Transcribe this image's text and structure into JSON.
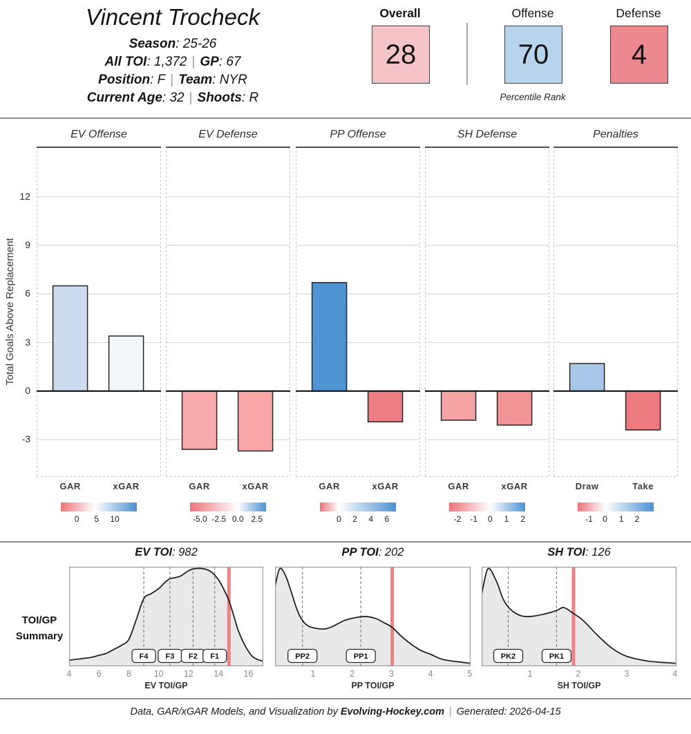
{
  "header": {
    "player_name": "Vincent Trocheck",
    "season_label": "Season",
    "season_value": ": 25-26",
    "alltoi_label": "All TOI",
    "alltoi_value": ": 1,372",
    "gp_label": "GP",
    "gp_value": ": 67",
    "position_label": "Position",
    "position_value": ": F",
    "team_label": "Team",
    "team_value": ": NYR",
    "age_label": "Current Age",
    "age_value": ": 32",
    "shoots_label": "Shoots",
    "shoots_value": ": R",
    "pipe": "|"
  },
  "percentile": {
    "caption": "Percentile Rank",
    "boxes": [
      {
        "label": "Overall",
        "value": "28",
        "color": "#f5c4c8"
      },
      {
        "label": "Offense",
        "value": "70",
        "color": "#b8d4ec"
      },
      {
        "label": "Defense",
        "value": "4",
        "color": "#ec898e"
      }
    ]
  },
  "chart_data": {
    "gar": {
      "type": "bar",
      "ylabel": "Total Goals Above Replacement",
      "ylim": [
        -5.3,
        15.1
      ],
      "y_ticks": [
        12,
        9,
        6,
        3,
        0,
        -3
      ],
      "panels": [
        {
          "title": "EV Offense",
          "categories": [
            "GAR",
            "xGAR"
          ],
          "values": [
            6.5,
            3.4
          ],
          "bar_colors": [
            "#cddcee",
            "#f3f7fb"
          ],
          "legend": {
            "ticks": [
              "0",
              "5",
              "10"
            ],
            "tick_pos": [
              0.21,
              0.47,
              0.71
            ],
            "white_pos": 0.45
          }
        },
        {
          "title": "EV Defense",
          "categories": [
            "GAR",
            "xGAR"
          ],
          "values": [
            -3.6,
            -3.7
          ],
          "bar_colors": [
            "#f9aaad",
            "#f9a6a9"
          ],
          "legend": {
            "ticks": [
              "-5.0",
              "-2.5",
              "0.0",
              "2.5"
            ],
            "tick_pos": [
              0.13,
              0.38,
              0.63,
              0.88
            ],
            "white_pos": 0.63
          }
        },
        {
          "title": "PP Offense",
          "categories": [
            "GAR",
            "xGAR"
          ],
          "values": [
            6.7,
            -1.9
          ],
          "bar_colors": [
            "#4f94d3",
            "#ee7e83"
          ],
          "legend": {
            "ticks": [
              "0",
              "2",
              "4",
              "6"
            ],
            "tick_pos": [
              0.25,
              0.46,
              0.67,
              0.88
            ],
            "white_pos": 0.25
          }
        },
        {
          "title": "SH Defense",
          "categories": [
            "GAR",
            "xGAR"
          ],
          "values": [
            -1.8,
            -2.1
          ],
          "bar_colors": [
            "#f6a3a6",
            "#f29496"
          ],
          "legend": {
            "ticks": [
              "-2",
              "-1",
              "0",
              "1",
              "2"
            ],
            "tick_pos": [
              0.11,
              0.325,
              0.54,
              0.755,
              0.97
            ],
            "white_pos": 0.54
          }
        },
        {
          "title": "Penalties",
          "categories": [
            "Draw",
            "Take"
          ],
          "values": [
            1.7,
            -2.4
          ],
          "bar_colors": [
            "#a8c7e9",
            "#ed7a7f"
          ],
          "legend": {
            "ticks": [
              "-1",
              "0",
              "1",
              "2"
            ],
            "tick_pos": [
              0.15,
              0.36,
              0.575,
              0.78
            ],
            "white_pos": 0.36
          }
        }
      ]
    },
    "toi": {
      "type": "area",
      "section_label_line1": "TOI/GP",
      "section_label_line2": "Summary",
      "panels": [
        {
          "title_label": "EV TOI",
          "title_value": ": 982",
          "xlabel": "EV TOI/GP",
          "xlim": [
            4,
            17
          ],
          "x_ticks": [
            4,
            6,
            8,
            10,
            12,
            14,
            16
          ],
          "markers": [
            {
              "label": "F4",
              "x": 9.0
            },
            {
              "label": "F3",
              "x": 10.75
            },
            {
              "label": "F2",
              "x": 12.3
            },
            {
              "label": "F1",
              "x": 13.75
            }
          ],
          "player_x": 14.7,
          "curve": [
            [
              4,
              0.06
            ],
            [
              4.5,
              0.07
            ],
            [
              5,
              0.08
            ],
            [
              5.5,
              0.09
            ],
            [
              6,
              0.11
            ],
            [
              6.5,
              0.13
            ],
            [
              7,
              0.17
            ],
            [
              7.5,
              0.21
            ],
            [
              8,
              0.27
            ],
            [
              8.5,
              0.47
            ],
            [
              9,
              0.68
            ],
            [
              9.5,
              0.73
            ],
            [
              10,
              0.78
            ],
            [
              10.4,
              0.84
            ],
            [
              10.75,
              0.88
            ],
            [
              11.1,
              0.89
            ],
            [
              11.5,
              0.91
            ],
            [
              12,
              0.96
            ],
            [
              12.4,
              0.98
            ],
            [
              13,
              0.98
            ],
            [
              13.5,
              0.95
            ],
            [
              14,
              0.87
            ],
            [
              14.4,
              0.76
            ],
            [
              14.7,
              0.66
            ],
            [
              15,
              0.52
            ],
            [
              15.3,
              0.37
            ],
            [
              15.7,
              0.23
            ],
            [
              16.2,
              0.11
            ],
            [
              16.6,
              0.07
            ],
            [
              17,
              0.05
            ]
          ]
        },
        {
          "title_label": "PP TOI",
          "title_value": ": 202",
          "xlabel": "PP TOI/GP",
          "xlim": [
            0.03,
            5.02
          ],
          "x_ticks": [
            1,
            2,
            3,
            4,
            5
          ],
          "markers": [
            {
              "label": "PP2",
              "x": 0.73
            },
            {
              "label": "PP1",
              "x": 2.22
            }
          ],
          "player_x": 3.02,
          "curve": [
            [
              0.03,
              0.8
            ],
            [
              0.15,
              0.98
            ],
            [
              0.3,
              0.91
            ],
            [
              0.45,
              0.74
            ],
            [
              0.6,
              0.56
            ],
            [
              0.75,
              0.45
            ],
            [
              0.9,
              0.4
            ],
            [
              1.1,
              0.38
            ],
            [
              1.3,
              0.375
            ],
            [
              1.5,
              0.4
            ],
            [
              1.8,
              0.46
            ],
            [
              2.1,
              0.49
            ],
            [
              2.35,
              0.5
            ],
            [
              2.6,
              0.48
            ],
            [
              2.8,
              0.44
            ],
            [
              3.02,
              0.39
            ],
            [
              3.3,
              0.285
            ],
            [
              3.7,
              0.17
            ],
            [
              4.0,
              0.12
            ],
            [
              4.3,
              0.07
            ],
            [
              4.7,
              0.045
            ],
            [
              5.02,
              0.03
            ]
          ]
        },
        {
          "title_label": "SH TOI",
          "title_value": ": 126",
          "xlabel": "SH TOI/GP",
          "xlim": [
            0,
            4.03
          ],
          "x_ticks": [
            1,
            2,
            3,
            4
          ],
          "markers": [
            {
              "label": "PK2",
              "x": 0.55
            },
            {
              "label": "PK1",
              "x": 1.55
            }
          ],
          "player_x": 1.9,
          "curve": [
            [
              0,
              0.72
            ],
            [
              0.13,
              0.98
            ],
            [
              0.3,
              0.86
            ],
            [
              0.45,
              0.67
            ],
            [
              0.6,
              0.57
            ],
            [
              0.8,
              0.51
            ],
            [
              1.0,
              0.5
            ],
            [
              1.3,
              0.525
            ],
            [
              1.55,
              0.56
            ],
            [
              1.7,
              0.59
            ],
            [
              1.9,
              0.53
            ],
            [
              2.1,
              0.46
            ],
            [
              2.4,
              0.31
            ],
            [
              2.7,
              0.18
            ],
            [
              3.0,
              0.1
            ],
            [
              3.4,
              0.055
            ],
            [
              3.7,
              0.04
            ],
            [
              4.03,
              0.03
            ]
          ]
        }
      ]
    }
  },
  "footer": {
    "prefix": "Data, GAR/xGAR Models, and Visualization by ",
    "brand": "Evolving-Hockey.com",
    "pipe": "|",
    "suffix": "Generated: 2026-04-15"
  }
}
